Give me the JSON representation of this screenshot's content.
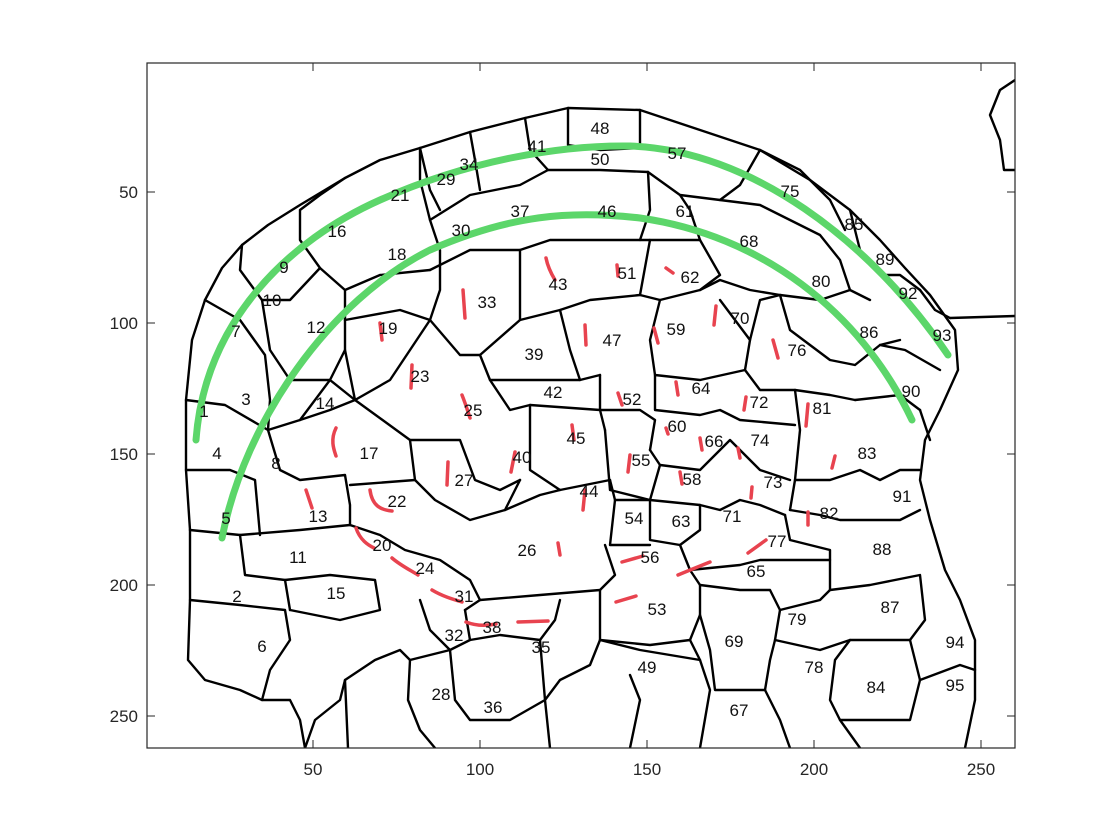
{
  "figure": {
    "x_ticks": [
      "50",
      "100",
      "150",
      "200",
      "250"
    ],
    "y_ticks": [
      "50",
      "100",
      "150",
      "200",
      "250"
    ],
    "colors": {
      "background": "#ffffff",
      "boundary": "#000000",
      "arc": "#5cd66a",
      "stroke": "#e8434f"
    },
    "region_labels": [
      "1",
      "2",
      "3",
      "4",
      "5",
      "6",
      "7",
      "8",
      "9",
      "10",
      "11",
      "12",
      "13",
      "14",
      "15",
      "16",
      "17",
      "18",
      "19",
      "20",
      "21",
      "22",
      "23",
      "24",
      "25",
      "26",
      "27",
      "28",
      "29",
      "30",
      "31",
      "32",
      "33",
      "34",
      "35",
      "36",
      "37",
      "38",
      "39",
      "40",
      "41",
      "42",
      "43",
      "44",
      "45",
      "46",
      "47",
      "48",
      "49",
      "50",
      "51",
      "52",
      "53",
      "54",
      "55",
      "56",
      "57",
      "58",
      "59",
      "60",
      "61",
      "62",
      "63",
      "64",
      "65",
      "66",
      "67",
      "68",
      "69",
      "70",
      "71",
      "72",
      "73",
      "74",
      "75",
      "76",
      "77",
      "78",
      "79",
      "80",
      "81",
      "82",
      "83",
      "84",
      "85",
      "86",
      "87",
      "88",
      "89",
      "90",
      "91",
      "92",
      "93",
      "94",
      "95"
    ]
  }
}
